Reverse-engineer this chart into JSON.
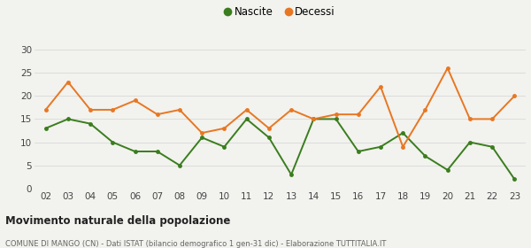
{
  "years": [
    "02",
    "03",
    "04",
    "05",
    "06",
    "07",
    "08",
    "09",
    "10",
    "11",
    "12",
    "13",
    "14",
    "15",
    "16",
    "17",
    "18",
    "19",
    "20",
    "21",
    "22",
    "23"
  ],
  "nascite": [
    13,
    15,
    14,
    10,
    8,
    8,
    5,
    11,
    9,
    15,
    11,
    3,
    15,
    15,
    8,
    9,
    12,
    7,
    4,
    10,
    9,
    2
  ],
  "decessi": [
    17,
    23,
    17,
    17,
    19,
    16,
    17,
    12,
    13,
    17,
    13,
    17,
    15,
    16,
    16,
    22,
    9,
    17,
    26,
    15,
    15,
    20
  ],
  "nascite_color": "#3a7d1e",
  "decessi_color": "#e87722",
  "ylim": [
    0,
    30
  ],
  "yticks": [
    0,
    5,
    10,
    15,
    20,
    25,
    30
  ],
  "title": "Movimento naturale della popolazione",
  "subtitle": "COMUNE DI MANGO (CN) - Dati ISTAT (bilancio demografico 1 gen-31 dic) - Elaborazione TUTTITALIA.IT",
  "legend_nascite": "Nascite",
  "legend_decessi": "Decessi",
  "bg_color": "#f2f2ee",
  "grid_color": "#d8d8d8"
}
